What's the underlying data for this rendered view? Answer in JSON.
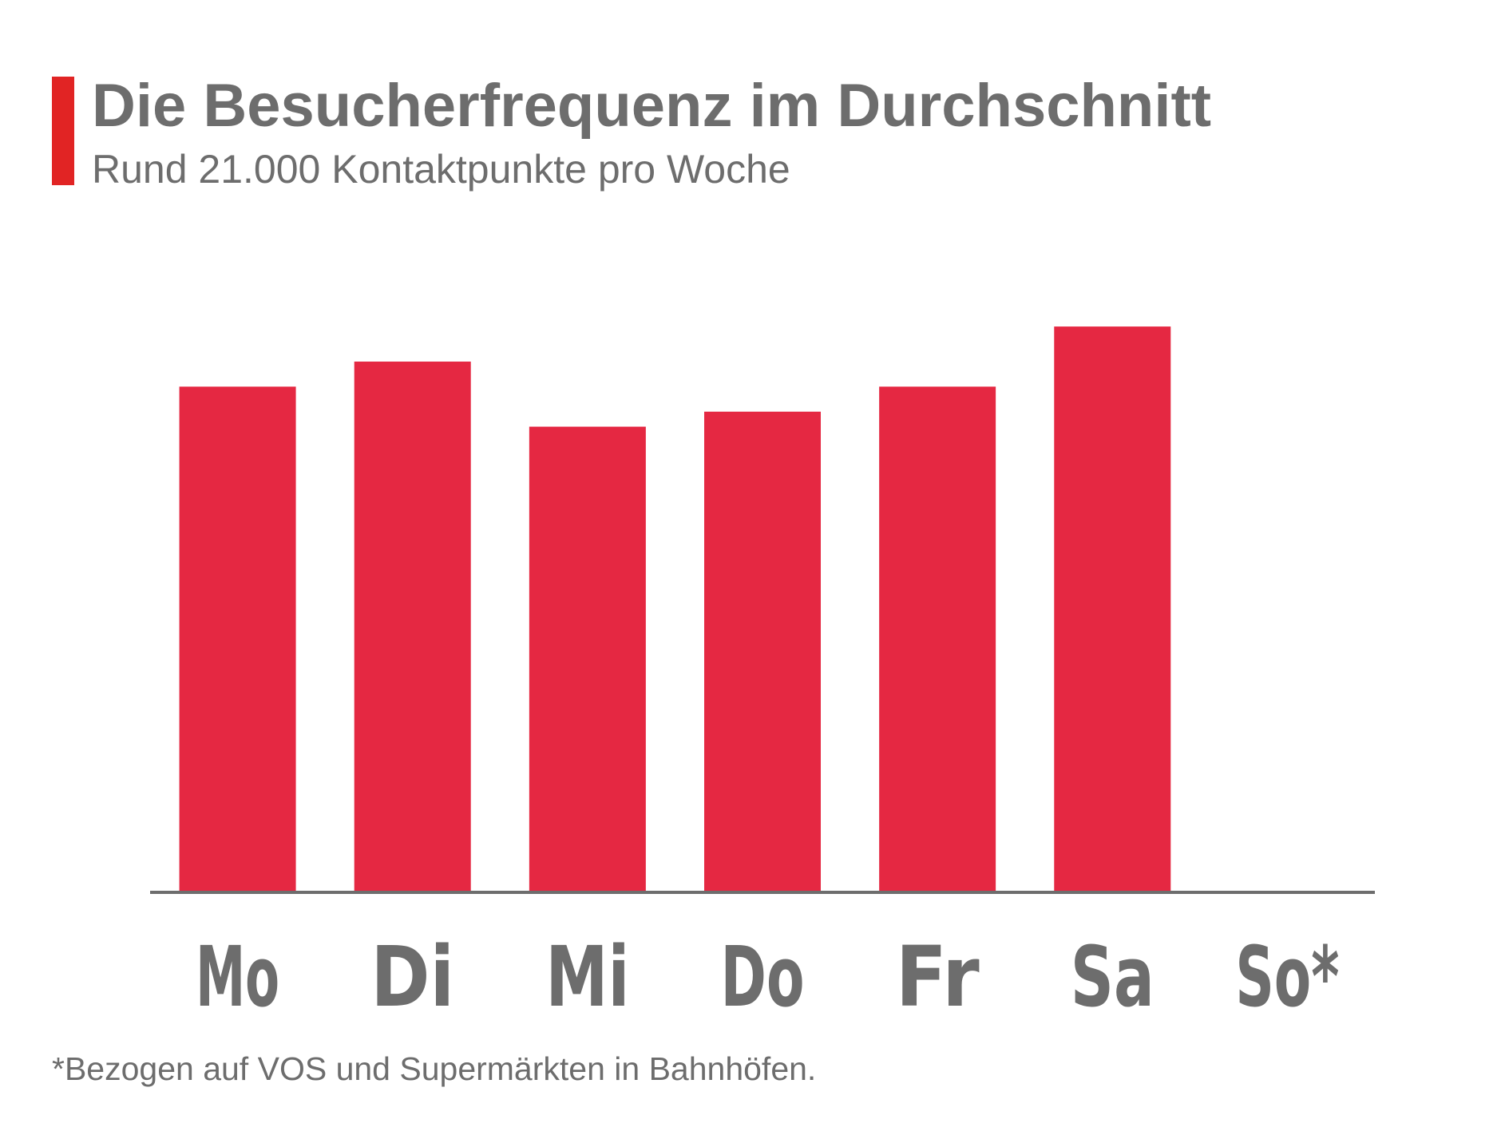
{
  "header": {
    "title": "Die Besucherfrequenz im Durchschnitt",
    "subtitle": "Rund 21.000 Kontaktpunkte pro Woche"
  },
  "footnote": "*Bezogen auf VOS und Supermärkten in Bahnhöfen.",
  "colors": {
    "accent": "#e12424",
    "bar": "#e52842",
    "text": "#6d6d6d",
    "axis": "#6d6d6d"
  },
  "chart_data": {
    "type": "bar",
    "categories": [
      "Mo",
      "Di",
      "Mi",
      "Do",
      "Fr",
      "Sa",
      "So*"
    ],
    "values": [
      3020,
      3170,
      2780,
      2870,
      3020,
      3380,
      0
    ],
    "title": "",
    "xlabel": "",
    "ylabel": "",
    "ylim": [
      0,
      3500
    ],
    "grid": false,
    "legend": "none"
  }
}
